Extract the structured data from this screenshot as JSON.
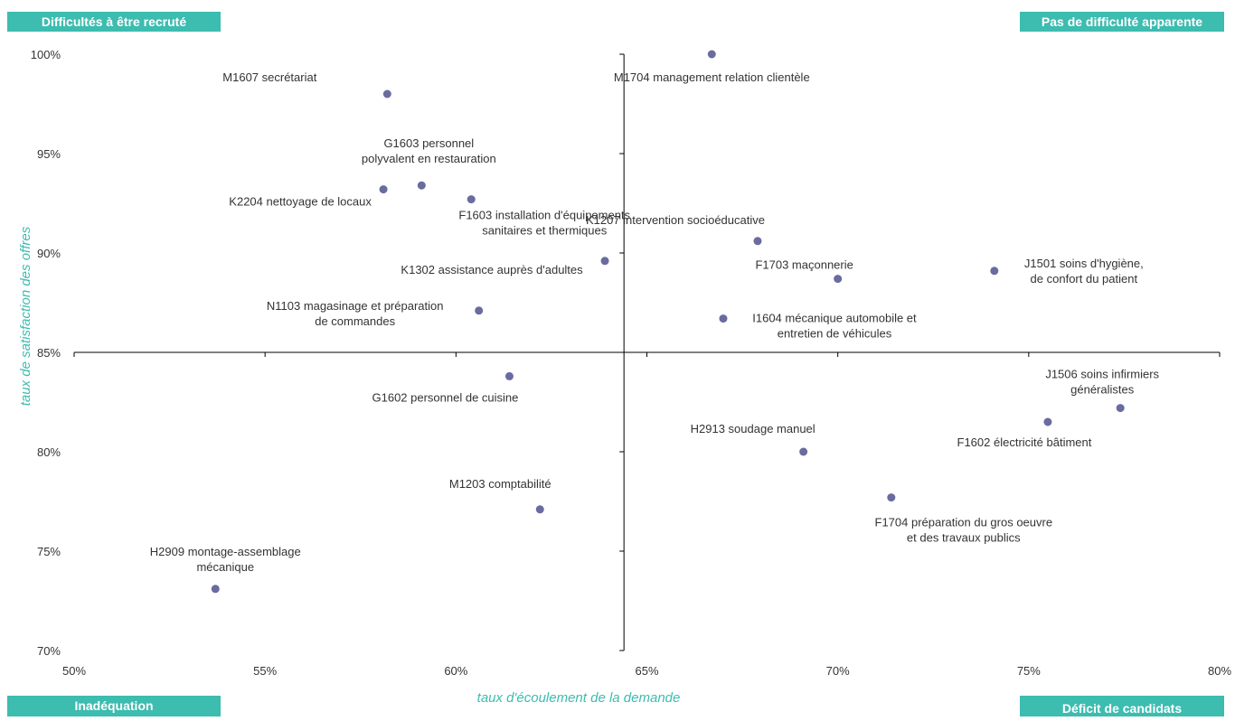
{
  "quadrants": {
    "top_left": "Difficultés à être recruté",
    "top_right": "Pas de difficulté apparente",
    "bottom_left": "Inadéquation",
    "bottom_right": "Déficit de candidats"
  },
  "colors": {
    "accent": "#3dbcb0",
    "points": "#6a6b9e",
    "axis": "#000000"
  },
  "chart_data": {
    "type": "scatter",
    "xlabel": "taux d'écoulement de la demande",
    "ylabel": "taux de satisfaction des offres",
    "xlim": [
      50,
      80
    ],
    "ylim": [
      70,
      100
    ],
    "x_ticks": [
      50,
      55,
      60,
      65,
      70,
      75,
      80
    ],
    "y_ticks": [
      70,
      75,
      80,
      85,
      90,
      95,
      100
    ],
    "x_tick_labels": [
      "50%",
      "55%",
      "60%",
      "65%",
      "70%",
      "75%",
      "80%"
    ],
    "y_tick_labels": [
      "70%",
      "75%",
      "80%",
      "85%",
      "90%",
      "95%",
      "100%"
    ],
    "crossing": {
      "x": 64.4,
      "y": 85
    },
    "points": [
      {
        "x": 66.7,
        "y": 100.0,
        "label": [
          "M1704 management  relation clientèle"
        ]
      },
      {
        "x": 58.2,
        "y": 98.0,
        "label": [
          "M1607 secrétariat"
        ]
      },
      {
        "x": 59.1,
        "y": 93.4,
        "label": [
          "G1603 personnel",
          "polyvalent  en restauration"
        ]
      },
      {
        "x": 58.1,
        "y": 93.2,
        "label": [
          "K2204 nettoyage de locaux"
        ]
      },
      {
        "x": 60.4,
        "y": 92.7,
        "label": [
          "F1603 installation d'équipements",
          "sanitaires et thermiques"
        ]
      },
      {
        "x": 67.9,
        "y": 90.6,
        "label": [
          "K1207 intervention  socioéducative"
        ]
      },
      {
        "x": 63.9,
        "y": 89.6,
        "label": [
          "K1302 assistance auprès d'adultes"
        ]
      },
      {
        "x": 74.1,
        "y": 89.1,
        "label": [
          "J1501 soins d'hygiène,",
          "de confort du patient"
        ]
      },
      {
        "x": 70.0,
        "y": 88.7,
        "label": [
          "F1703 maçonnerie"
        ]
      },
      {
        "x": 60.6,
        "y": 87.1,
        "label": [
          "N1103 magasinage et préparation",
          "de commandes"
        ]
      },
      {
        "x": 67.0,
        "y": 86.7,
        "label": [
          "I1604 mécanique automobile et",
          "entretien de véhicules"
        ]
      },
      {
        "x": 61.4,
        "y": 83.8,
        "label": [
          "G1602 personnel de cuisine"
        ]
      },
      {
        "x": 77.4,
        "y": 82.2,
        "label": [
          "J1506 soins infirmiers",
          "généralistes"
        ]
      },
      {
        "x": 75.5,
        "y": 81.5,
        "label": [
          "F1602 électricité bâtiment"
        ]
      },
      {
        "x": 69.1,
        "y": 80.0,
        "label": [
          "H2913 soudage manuel"
        ]
      },
      {
        "x": 71.4,
        "y": 77.7,
        "label": [
          "F1704 préparation  du gros oeuvre",
          "et des travaux publics"
        ]
      },
      {
        "x": 62.2,
        "y": 77.1,
        "label": [
          "M1203 comptabilité"
        ]
      },
      {
        "x": 53.7,
        "y": 73.1,
        "label": [
          "H2909 montage-assemblage",
          "mécanique"
        ]
      }
    ]
  }
}
